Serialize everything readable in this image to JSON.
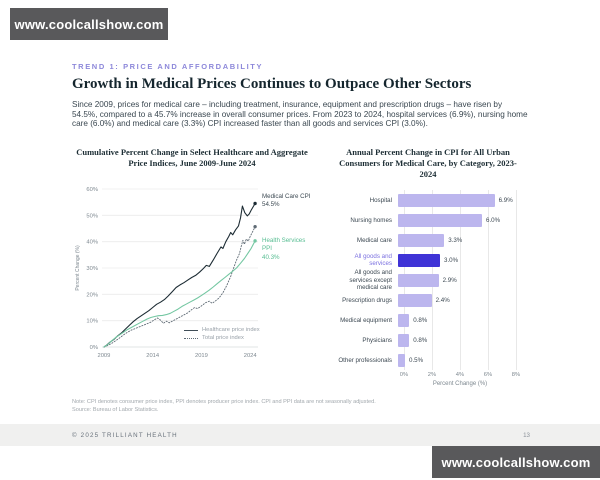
{
  "banners": {
    "top": "www.coolcallshow.com",
    "bottom": "www.coolcallshow.com"
  },
  "header": {
    "eyebrow": "TREND 1: PRICE AND AFFORDABILITY",
    "title": "Growth in Medical Prices Continues to Outpace Other Sectors",
    "body": "Since 2009, prices for medical care – including treatment, insurance, equipment and prescription drugs – have risen by 54.5%, compared to a 45.7% increase in overall consumer prices. From 2023 to 2024, hospital services (6.9%), nursing home care (6.0%) and medical care (3.3%) CPI increased faster than all goods and services CPI (3.0%)."
  },
  "chart_data": [
    {
      "type": "line",
      "title": "Cumulative Percent Change in Select Healthcare and Aggregate Price Indices, June 2009-June 2024",
      "ylabel": "Percent Change (%)",
      "ylim": [
        0,
        60
      ],
      "yticks": [
        0,
        10,
        20,
        30,
        40,
        50,
        60
      ],
      "ytick_labels": [
        "0%",
        "10%",
        "20%",
        "30%",
        "40%",
        "50%",
        "60%"
      ],
      "xlim": [
        2008.8,
        2024.8
      ],
      "xticks": [
        2009,
        2014,
        2019,
        2024
      ],
      "grid": "horizontal",
      "legend_position": "inside-bottom-right",
      "series": [
        {
          "name": "Healthcare price index",
          "style": "solid",
          "color": "#1d2c34",
          "points": [
            [
              2009,
              0
            ],
            [
              2009.3,
              0.8
            ],
            [
              2009.6,
              1.8
            ],
            [
              2010,
              2.8
            ],
            [
              2010.4,
              4.2
            ],
            [
              2010.8,
              5.3
            ],
            [
              2011.2,
              6.8
            ],
            [
              2011.6,
              8.2
            ],
            [
              2012,
              9.6
            ],
            [
              2012.4,
              10.8
            ],
            [
              2012.8,
              11.8
            ],
            [
              2013.2,
              12.8
            ],
            [
              2013.6,
              13.8
            ],
            [
              2014,
              15
            ],
            [
              2014.4,
              16.2
            ],
            [
              2014.8,
              17
            ],
            [
              2015.2,
              18
            ],
            [
              2015.6,
              19.4
            ],
            [
              2016,
              21
            ],
            [
              2016.4,
              22.6
            ],
            [
              2016.8,
              23.6
            ],
            [
              2017.2,
              24.4
            ],
            [
              2017.6,
              25.4
            ],
            [
              2018,
              26.4
            ],
            [
              2018.4,
              27.2
            ],
            [
              2018.8,
              28.4
            ],
            [
              2019.2,
              29.8
            ],
            [
              2019.5,
              31
            ],
            [
              2019.8,
              30.6
            ],
            [
              2020.2,
              33
            ],
            [
              2020.6,
              35.5
            ],
            [
              2021,
              38
            ],
            [
              2021.2,
              37.4
            ],
            [
              2021.5,
              40
            ],
            [
              2021.8,
              42
            ],
            [
              2022,
              43.5
            ],
            [
              2022.2,
              42.6
            ],
            [
              2022.5,
              44.5
            ],
            [
              2022.8,
              46
            ],
            [
              2023,
              49
            ],
            [
              2023.2,
              53.5
            ],
            [
              2023.45,
              51
            ],
            [
              2023.7,
              49.8
            ],
            [
              2023.9,
              50.5
            ],
            [
              2024.1,
              52
            ],
            [
              2024.3,
              53.2
            ],
            [
              2024.5,
              54.5
            ]
          ]
        },
        {
          "name": "Total price index",
          "style": "dotted",
          "color": "#5f6b75",
          "points": [
            [
              2009,
              0
            ],
            [
              2009.4,
              0.6
            ],
            [
              2009.8,
              1.4
            ],
            [
              2010.2,
              2.4
            ],
            [
              2010.6,
              3.4
            ],
            [
              2011,
              4.6
            ],
            [
              2011.4,
              5.6
            ],
            [
              2011.8,
              6.4
            ],
            [
              2012.2,
              7
            ],
            [
              2012.6,
              7.6
            ],
            [
              2013,
              8.2
            ],
            [
              2013.4,
              8.8
            ],
            [
              2013.8,
              9.4
            ],
            [
              2014.2,
              10.4
            ],
            [
              2014.5,
              11
            ],
            [
              2014.8,
              10.2
            ],
            [
              2015.1,
              9
            ],
            [
              2015.4,
              9.8
            ],
            [
              2015.7,
              9.2
            ],
            [
              2016,
              9.8
            ],
            [
              2016.4,
              10.6
            ],
            [
              2016.8,
              11.4
            ],
            [
              2017.2,
              12.2
            ],
            [
              2017.6,
              13
            ],
            [
              2018,
              14.2
            ],
            [
              2018.3,
              15
            ],
            [
              2018.6,
              14.6
            ],
            [
              2019,
              15.6
            ],
            [
              2019.4,
              16.8
            ],
            [
              2019.8,
              17.4
            ],
            [
              2020.1,
              16.6
            ],
            [
              2020.4,
              17.4
            ],
            [
              2020.8,
              18.6
            ],
            [
              2021.2,
              20.6
            ],
            [
              2021.6,
              23.4
            ],
            [
              2022,
              26.8
            ],
            [
              2022.3,
              30
            ],
            [
              2022.6,
              33
            ],
            [
              2022.9,
              35.5
            ],
            [
              2023.1,
              38.5
            ],
            [
              2023.25,
              40.5
            ],
            [
              2023.4,
              39
            ],
            [
              2023.6,
              41
            ],
            [
              2023.8,
              40.2
            ],
            [
              2024,
              42
            ],
            [
              2024.2,
              43.5
            ],
            [
              2024.5,
              45.7
            ]
          ]
        },
        {
          "name": "Health Services PPI",
          "style": "solid",
          "color": "#74c7a2",
          "points": [
            [
              2009,
              0
            ],
            [
              2009.4,
              1
            ],
            [
              2009.8,
              2.4
            ],
            [
              2010.2,
              3.6
            ],
            [
              2010.6,
              4.6
            ],
            [
              2011,
              5.6
            ],
            [
              2011.4,
              6.6
            ],
            [
              2011.8,
              7.4
            ],
            [
              2012.2,
              8.2
            ],
            [
              2012.6,
              9
            ],
            [
              2013,
              9.8
            ],
            [
              2013.4,
              10.6
            ],
            [
              2013.8,
              11.2
            ],
            [
              2014.2,
              11.6
            ],
            [
              2014.6,
              11.9
            ],
            [
              2015,
              12
            ],
            [
              2015.4,
              12.3
            ],
            [
              2015.8,
              12.8
            ],
            [
              2016.2,
              13.6
            ],
            [
              2016.6,
              14.4
            ],
            [
              2017,
              15.4
            ],
            [
              2017.4,
              16.2
            ],
            [
              2017.8,
              17
            ],
            [
              2018.2,
              17.8
            ],
            [
              2018.6,
              18.6
            ],
            [
              2019,
              19.6
            ],
            [
              2019.4,
              20.6
            ],
            [
              2019.8,
              21.6
            ],
            [
              2020.2,
              22.8
            ],
            [
              2020.6,
              24
            ],
            [
              2021,
              25.2
            ],
            [
              2021.4,
              26.4
            ],
            [
              2021.8,
              27.6
            ],
            [
              2022.2,
              28.8
            ],
            [
              2022.6,
              30
            ],
            [
              2023,
              31.8
            ],
            [
              2023.4,
              33.6
            ],
            [
              2023.8,
              35.8
            ],
            [
              2024.1,
              37.5
            ],
            [
              2024.5,
              40.3
            ]
          ]
        }
      ],
      "annotations": [
        {
          "text": "Medical Care CPI",
          "value": "54.5%",
          "color": "#3d4a53"
        },
        {
          "text": "Health Services PPI",
          "value": "40.3%",
          "color": "#57bd92"
        }
      ]
    },
    {
      "type": "bar",
      "orientation": "horizontal",
      "title": "Annual Percent Change in CPI for All Urban Consumers for Medical Care, by Category, 2023-2024",
      "xlabel": "Percent Change (%)",
      "xlim": [
        0,
        8
      ],
      "xtick_labels": [
        "0%",
        "2%",
        "4%",
        "6%",
        "8%"
      ],
      "categories": [
        "Hospital",
        "Nursing homes",
        "Medical care",
        "All goods and services",
        "All goods and services except medical care",
        "Prescription drugs",
        "Medical equipment",
        "Physicians",
        "Other professionals"
      ],
      "values": [
        6.9,
        6.0,
        3.3,
        3.0,
        2.9,
        2.4,
        0.8,
        0.8,
        0.5
      ],
      "value_labels": [
        "6.9%",
        "6.0%",
        "3.3%",
        "3.0%",
        "2.9%",
        "2.4%",
        "0.8%",
        "0.8%",
        "0.5%"
      ],
      "highlight_index": 3,
      "bar_color": "#bcb6ee",
      "highlight_color": "#3f33d6",
      "highlight_label_color": "#7b70e0",
      "grid": "vertical"
    }
  ],
  "footnote": {
    "note": "Note: CPI denotes consumer price index, PPI denotes producer price index. CPI and PPI data are not seasonally adjusted.",
    "source": "Source: Bureau of Labor Statistics."
  },
  "footer": {
    "copyright": "© 2025 TRILLIANT HEALTH",
    "page": "13"
  },
  "colors": {
    "accent_purple": "#8d88da",
    "highlight_blue": "#3f33d6",
    "bar_lavender": "#bcb6ee",
    "line_green": "#74c7a2",
    "banner_bg": "#59595b"
  }
}
